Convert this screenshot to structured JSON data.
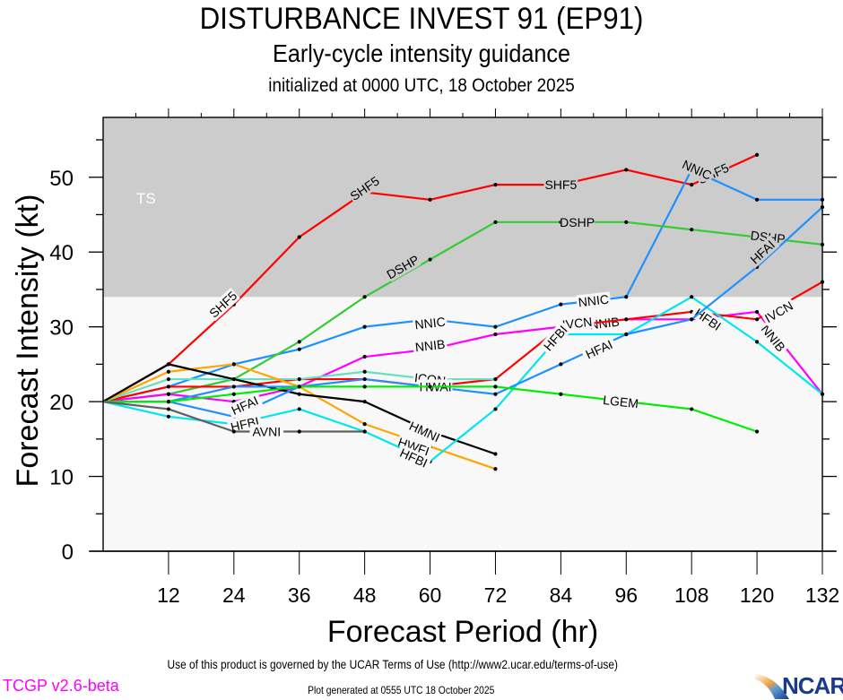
{
  "header": {
    "title": "DISTURBANCE INVEST 91 (EP91)",
    "subtitle": "Early-cycle intensity guidance",
    "initialized": "initialized at 0000 UTC, 18 October 2025"
  },
  "footer": {
    "terms": "Use of this product is governed by the UCAR Terms of Use (http://www2.ucar.edu/terms-of-use)",
    "version": "TCGP v2.6-beta",
    "generated": "Plot generated at 0555 UTC   18 October 2025",
    "logo_text": "NCAR"
  },
  "colors": {
    "ts_band": "#cccccc",
    "plot_bg": "#f8f8f8",
    "version_text": "#ff00ff"
  },
  "chart_data": {
    "type": "line",
    "title": "DISTURBANCE INVEST 91 (EP91)",
    "xlabel": "Forecast Period (hr)",
    "ylabel": "Forecast Intensity (kt)",
    "xlim": [
      0,
      132
    ],
    "ylim": [
      0,
      58
    ],
    "xticks": [
      12,
      24,
      36,
      48,
      60,
      72,
      84,
      96,
      108,
      120,
      132
    ],
    "yticks": [
      0,
      10,
      20,
      30,
      40,
      50
    ],
    "grid": false,
    "bands": [
      {
        "label": "TS",
        "from": 34,
        "to": 58,
        "color": "#cccccc"
      }
    ],
    "series": [
      {
        "name": "SHF5",
        "color": "#ff0000",
        "x": [
          0,
          12,
          24,
          36,
          48,
          60,
          72,
          84,
          96,
          108,
          120
        ],
        "values": [
          20,
          25,
          33,
          42,
          48,
          47,
          49,
          49,
          51,
          49,
          53
        ],
        "labels_at": [
          [
            22,
            33
          ],
          [
            48,
            48.5
          ],
          [
            84,
            49
          ],
          [
            112,
            50.5
          ]
        ]
      },
      {
        "name": "NNIC",
        "color": "#1e90ff",
        "x": [
          0,
          12,
          24,
          36,
          48,
          60,
          72,
          84,
          96,
          108,
          120,
          132
        ],
        "values": [
          20,
          22,
          25,
          27,
          30,
          31,
          30,
          33,
          34,
          51,
          47,
          47
        ],
        "labels_at": [
          [
            60,
            30.5
          ],
          [
            90,
            33.5
          ],
          [
            109,
            51
          ]
        ]
      },
      {
        "name": "DSHP",
        "color": "#33cc33",
        "x": [
          0,
          12,
          24,
          36,
          48,
          60,
          72,
          84,
          96,
          108,
          120,
          132
        ],
        "values": [
          20,
          21,
          23,
          28,
          34,
          39,
          44,
          44,
          44,
          43,
          42,
          41
        ],
        "labels_at": [
          [
            55,
            38
          ],
          [
            87,
            44
          ],
          [
            122,
            42
          ]
        ]
      },
      {
        "name": "NNIB",
        "color": "#ff00ff",
        "x": [
          0,
          12,
          24,
          36,
          48,
          60,
          72,
          84,
          96,
          108,
          120,
          132
        ],
        "values": [
          20,
          21,
          20,
          22,
          26,
          27,
          29,
          30,
          31,
          31,
          32,
          21
        ],
        "labels_at": [
          [
            60,
            27.5
          ],
          [
            92,
            30.5
          ],
          [
            123,
            28.5
          ]
        ]
      },
      {
        "name": "IVCN",
        "color": "#ff0000",
        "x": [
          0,
          12,
          24,
          36,
          48,
          60,
          72,
          84,
          96,
          108,
          120,
          132
        ],
        "values": [
          20,
          22,
          22,
          23,
          23,
          22,
          23,
          30,
          31,
          32,
          31,
          36
        ],
        "labels_at": [
          [
            87,
            30.5
          ],
          [
            124,
            32
          ]
        ]
      },
      {
        "name": "ICON",
        "color": "#66e0c0",
        "x": [
          0,
          12,
          24,
          36,
          48,
          60,
          72
        ],
        "values": [
          20,
          23,
          23,
          23,
          24,
          23,
          23
        ],
        "labels_at": [
          [
            60,
            23
          ]
        ]
      },
      {
        "name": "HWFI",
        "color": "#ffa500",
        "x": [
          0,
          12,
          24,
          36,
          48,
          60,
          72
        ],
        "values": [
          20,
          24,
          25,
          22,
          17,
          14,
          11
        ],
        "labels_at": [
          [
            57,
            14
          ]
        ]
      },
      {
        "name": "HMNI",
        "color": "#000000",
        "x": [
          0,
          12,
          24,
          36,
          48,
          60,
          72
        ],
        "values": [
          20,
          25,
          23,
          21,
          20,
          16,
          13
        ],
        "labels_at": [
          [
            59,
            16
          ]
        ]
      },
      {
        "name": "HFBI",
        "color": "#00e5ee",
        "x": [
          0,
          12,
          24,
          36,
          48,
          60,
          72,
          84,
          96,
          108,
          120,
          132
        ],
        "values": [
          20,
          18,
          17,
          19,
          16,
          12,
          19,
          29,
          29,
          34,
          28,
          21
        ],
        "labels_at": [
          [
            26,
            17
          ],
          [
            57,
            12.5
          ],
          [
            83,
            28.5
          ],
          [
            111,
            31
          ]
        ]
      },
      {
        "name": "HFAI",
        "color": "#1e90ff",
        "x": [
          0,
          12,
          24,
          36,
          48,
          60,
          72,
          84,
          96,
          108,
          120,
          132
        ],
        "values": [
          20,
          20,
          18,
          22,
          22,
          22,
          21,
          25,
          29,
          31,
          38,
          46
        ],
        "labels_at": [
          [
            26,
            19.5
          ],
          [
            91,
            27
          ],
          [
            121,
            40
          ]
        ]
      },
      {
        "name": "HWAI",
        "color": "#1e90ff",
        "x": [
          0,
          12,
          24,
          36,
          48,
          60,
          72
        ],
        "values": [
          20,
          20,
          22,
          22,
          23,
          22,
          22
        ],
        "labels_at": [
          [
            61,
            22
          ]
        ]
      },
      {
        "name": "LGEM",
        "color": "#00ee00",
        "x": [
          0,
          12,
          24,
          36,
          48,
          60,
          72,
          84,
          96,
          108,
          120
        ],
        "values": [
          20,
          20,
          21,
          22,
          22,
          22,
          22,
          21,
          20,
          19,
          16
        ],
        "labels_at": [
          [
            95,
            20
          ]
        ]
      },
      {
        "name": "AVNI",
        "color": "#606060",
        "x": [
          0,
          12,
          24,
          36,
          48
        ],
        "values": [
          20,
          19,
          16,
          16,
          16
        ],
        "labels_at": [
          [
            30,
            16
          ]
        ]
      }
    ]
  }
}
